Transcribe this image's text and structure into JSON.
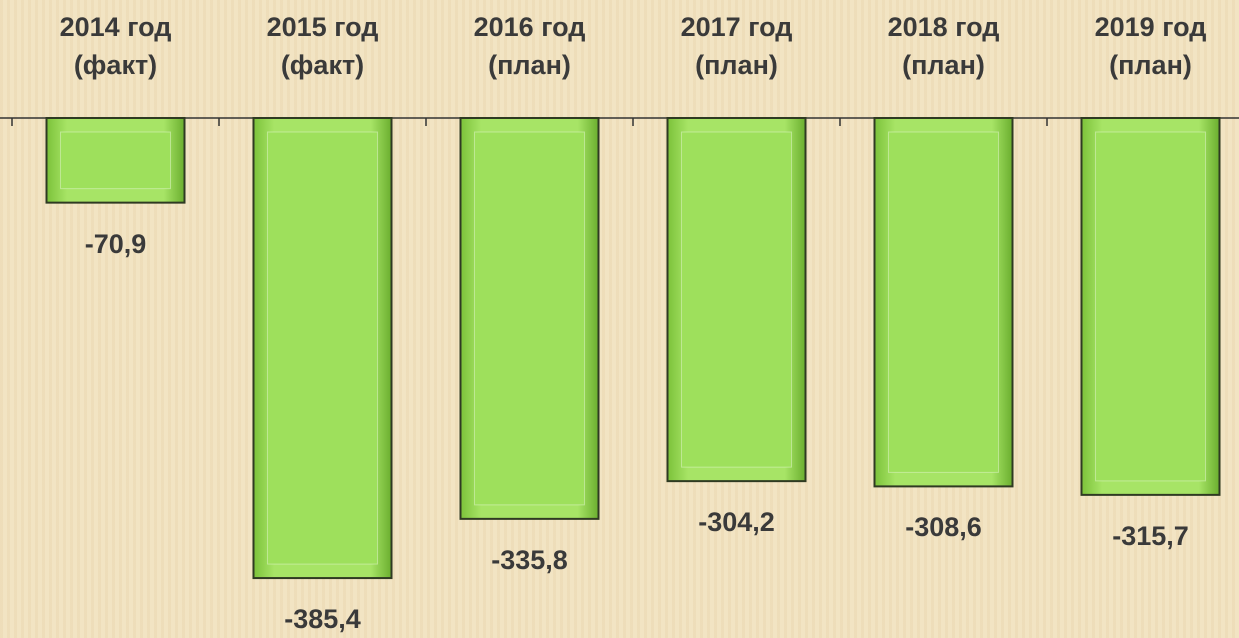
{
  "chart_data": {
    "type": "bar",
    "categories": [
      "2014 год\n(факт)",
      "2015 год\n(факт)",
      "2016 год\n(план)",
      "2017 год\n(план)",
      "2018 год\n(план)",
      "2019 год\n(план)"
    ],
    "values": [
      -70.9,
      -385.4,
      -335.8,
      -304.2,
      -308.6,
      -315.7
    ],
    "value_labels": [
      "-70,9",
      "-385,4",
      "-335,8",
      "-304,2",
      "-308,6",
      "-315,7"
    ],
    "color": "#9ee05c",
    "ylim": [
      -400,
      0
    ]
  }
}
